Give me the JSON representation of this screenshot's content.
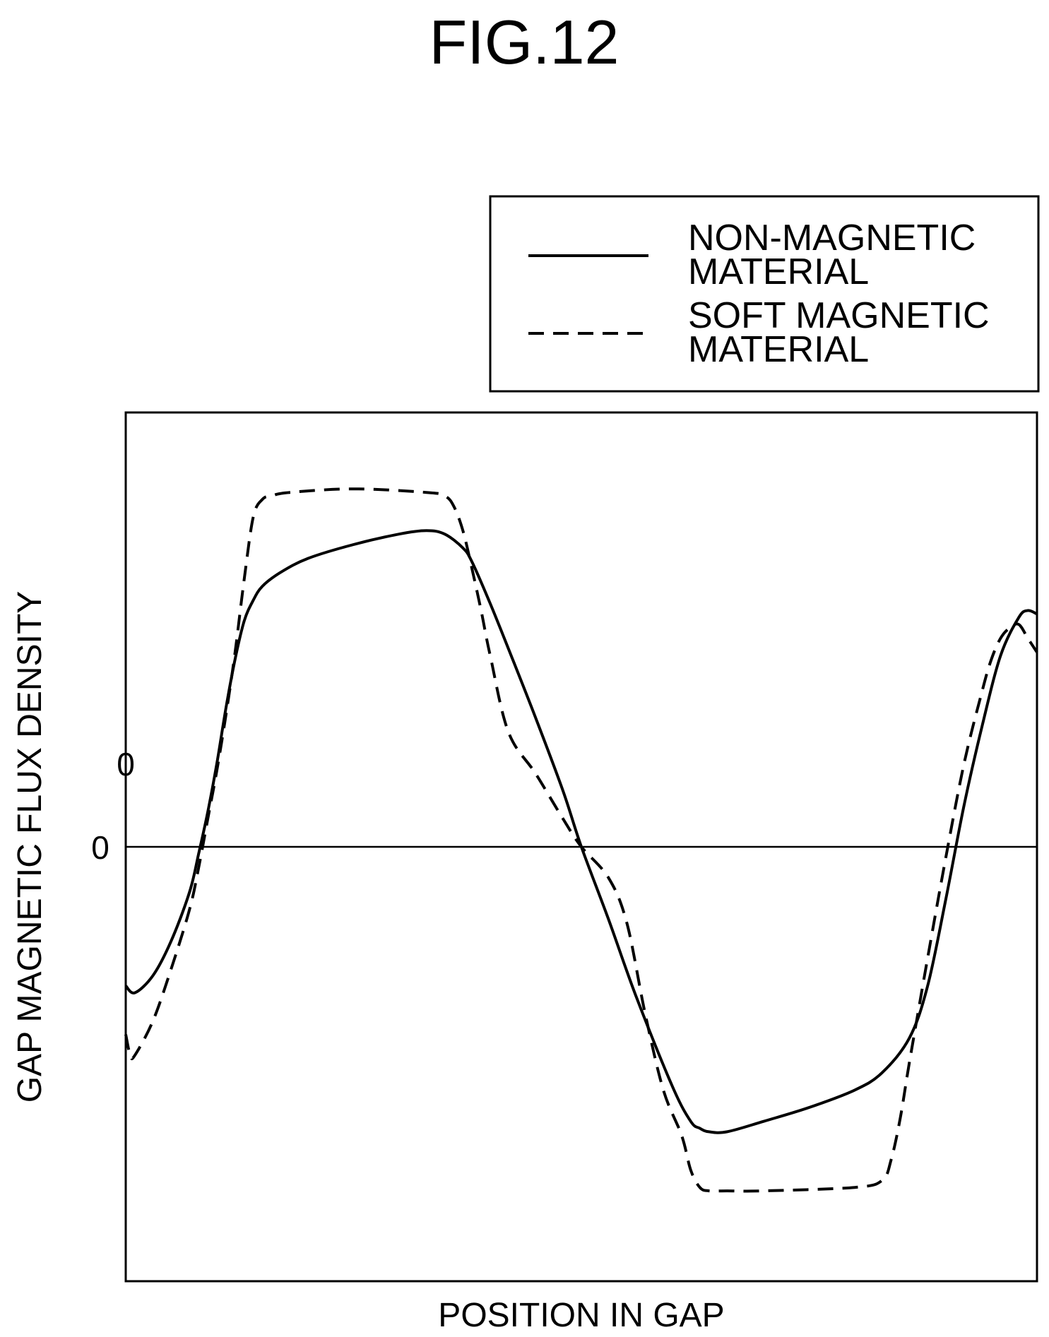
{
  "figure_label": "FIG.12",
  "chart_data": {
    "type": "line",
    "title": "FIG.12",
    "xlabel": "POSITION IN GAP",
    "ylabel": "GAP MAGNETIC FLUX DENSITY",
    "y_tick_labels": [
      "0",
      "0"
    ],
    "zero_line": true,
    "grid": false,
    "legend_position": "top-right, outside the plot area",
    "xlim": [
      0,
      100
    ],
    "ylim": [
      -1.25,
      1.25
    ],
    "colors": {
      "line": "#000000",
      "background": "#ffffff"
    },
    "series": [
      {
        "name": "NON-MAGNETIC MATERIAL",
        "style": "solid",
        "x": [
          0,
          1,
          3,
          5,
          7,
          8,
          9,
          10,
          11,
          12,
          13,
          14,
          15,
          17,
          20,
          25,
          30,
          33,
          35,
          37,
          38,
          40,
          42,
          45,
          48,
          50,
          53,
          56,
          60,
          62,
          63,
          64,
          66,
          70,
          75,
          80,
          83,
          86,
          88,
          90,
          92,
          94,
          96,
          98,
          99,
          100
        ],
        "y": [
          -0.4,
          -0.42,
          -0.37,
          -0.27,
          -0.13,
          -0.02,
          0.1,
          0.24,
          0.4,
          0.54,
          0.65,
          0.71,
          0.75,
          0.79,
          0.83,
          0.87,
          0.9,
          0.91,
          0.9,
          0.86,
          0.82,
          0.7,
          0.57,
          0.37,
          0.16,
          0.0,
          -0.21,
          -0.43,
          -0.69,
          -0.79,
          -0.81,
          -0.82,
          -0.82,
          -0.79,
          -0.75,
          -0.7,
          -0.65,
          -0.55,
          -0.4,
          -0.15,
          0.12,
          0.35,
          0.55,
          0.66,
          0.68,
          0.67
        ]
      },
      {
        "name": "SOFT MAGNETIC MATERIAL",
        "style": "dashed",
        "x": [
          0,
          0.5,
          1,
          3,
          5,
          7,
          8,
          9,
          10,
          11,
          12,
          13,
          14,
          15,
          16,
          18,
          25,
          33,
          35,
          36,
          37,
          38,
          39,
          40,
          42,
          45,
          48,
          50,
          53,
          55,
          57,
          59,
          61,
          62,
          63,
          64,
          66,
          70,
          80,
          83,
          84,
          85,
          86,
          88,
          90,
          92,
          94,
          95,
          96,
          97,
          98,
          99,
          100
        ],
        "y": [
          -0.54,
          -0.6,
          -0.6,
          -0.5,
          -0.35,
          -0.18,
          -0.06,
          0.08,
          0.22,
          0.38,
          0.56,
          0.77,
          0.95,
          1.0,
          1.01,
          1.02,
          1.03,
          1.02,
          1.01,
          0.98,
          0.91,
          0.8,
          0.68,
          0.55,
          0.33,
          0.21,
          0.08,
          0.0,
          -0.09,
          -0.22,
          -0.48,
          -0.7,
          -0.83,
          -0.93,
          -0.98,
          -0.99,
          -0.99,
          -0.99,
          -0.98,
          -0.96,
          -0.9,
          -0.78,
          -0.62,
          -0.32,
          -0.03,
          0.24,
          0.45,
          0.54,
          0.6,
          0.63,
          0.64,
          0.6,
          0.56
        ]
      }
    ]
  }
}
